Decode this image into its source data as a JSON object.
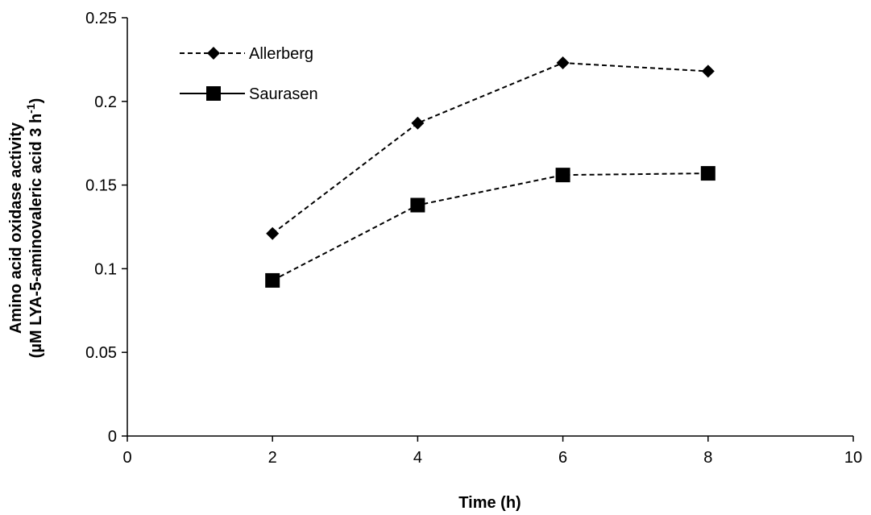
{
  "chart_data": {
    "type": "line",
    "title": "",
    "xlabel": "Time (h)",
    "ylabel": "Amino acid oxidase activity",
    "ylabel_line2_prefix": "(µM LYA-5-aminovaleric acid 3 h",
    "ylabel_line2_sup": "-1",
    "ylabel_line2_suffix": ")",
    "xlim": [
      0,
      10
    ],
    "ylim": [
      0,
      0.25
    ],
    "xticks": [
      0,
      2,
      4,
      6,
      8,
      10
    ],
    "xtick_labels": [
      "0",
      "2",
      "4",
      "6",
      "8",
      "10"
    ],
    "yticks": [
      0,
      0.05,
      0.1,
      0.15,
      0.2,
      0.25
    ],
    "ytick_labels": [
      "0",
      "0.05",
      "0.1",
      "0.15",
      "0.2",
      "0.25"
    ],
    "grid": false,
    "legend_position": "top-left",
    "series": [
      {
        "name": "Allerberg",
        "x": [
          2,
          4,
          6,
          8
        ],
        "y": [
          0.121,
          0.187,
          0.223,
          0.218
        ],
        "marker": "diamond",
        "line_style": "dashed",
        "legend_line_style": "dashed",
        "color": "#000000"
      },
      {
        "name": "Saurasen",
        "x": [
          2,
          4,
          6,
          8
        ],
        "y": [
          0.093,
          0.138,
          0.156,
          0.157
        ],
        "marker": "square",
        "line_style": "dashed",
        "legend_line_style": "solid",
        "color": "#000000"
      }
    ]
  }
}
